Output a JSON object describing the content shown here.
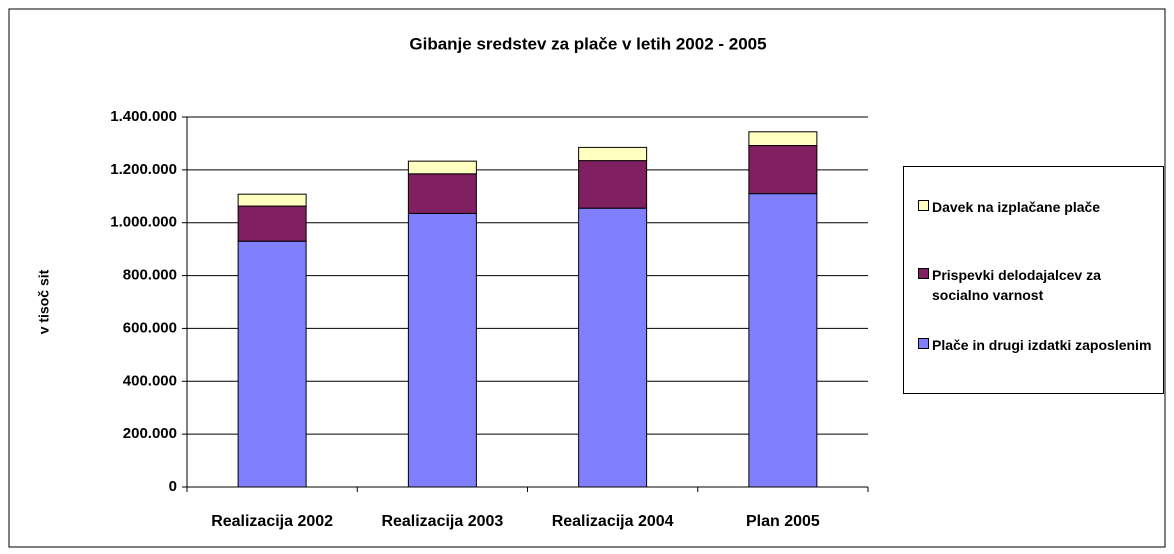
{
  "chart_data": {
    "type": "stacked_bar",
    "title": "Gibanje sredstev za plače v letih 2002 - 2005",
    "y_label": "v tisoč sit",
    "categories": [
      "Realizacija 2002",
      "Realizacija 2003",
      "Realizacija 2004",
      "Plan 2005"
    ],
    "series": [
      {
        "name": "Plače in drugi izdatki zaposlenim",
        "color": "#8080ff",
        "values": [
          930000,
          1035000,
          1055000,
          1110000
        ]
      },
      {
        "name": "Prispevki delodajalcev za socialno varnost",
        "color": "#802060",
        "values": [
          133000,
          150000,
          180000,
          182000
        ]
      },
      {
        "name": "Davek na izplačane plače",
        "color": "#ffffc0",
        "values": [
          45000,
          48000,
          50000,
          52000
        ]
      }
    ],
    "ylim": [
      0,
      1400000
    ],
    "yticks": [
      0,
      {
        "value": 200000,
        "label": "200.000"
      },
      {
        "value": 400000,
        "label": "400.000"
      },
      {
        "value": 600000,
        "label": "600.000"
      },
      {
        "value": 800000,
        "label": "800.000"
      },
      {
        "value": 1000000,
        "label": "1.000.000"
      },
      {
        "value": 1200000,
        "label": "1.200.000"
      },
      {
        "value": 1400000,
        "label": "1.400.000"
      }
    ],
    "grid": true,
    "legend": "right"
  }
}
